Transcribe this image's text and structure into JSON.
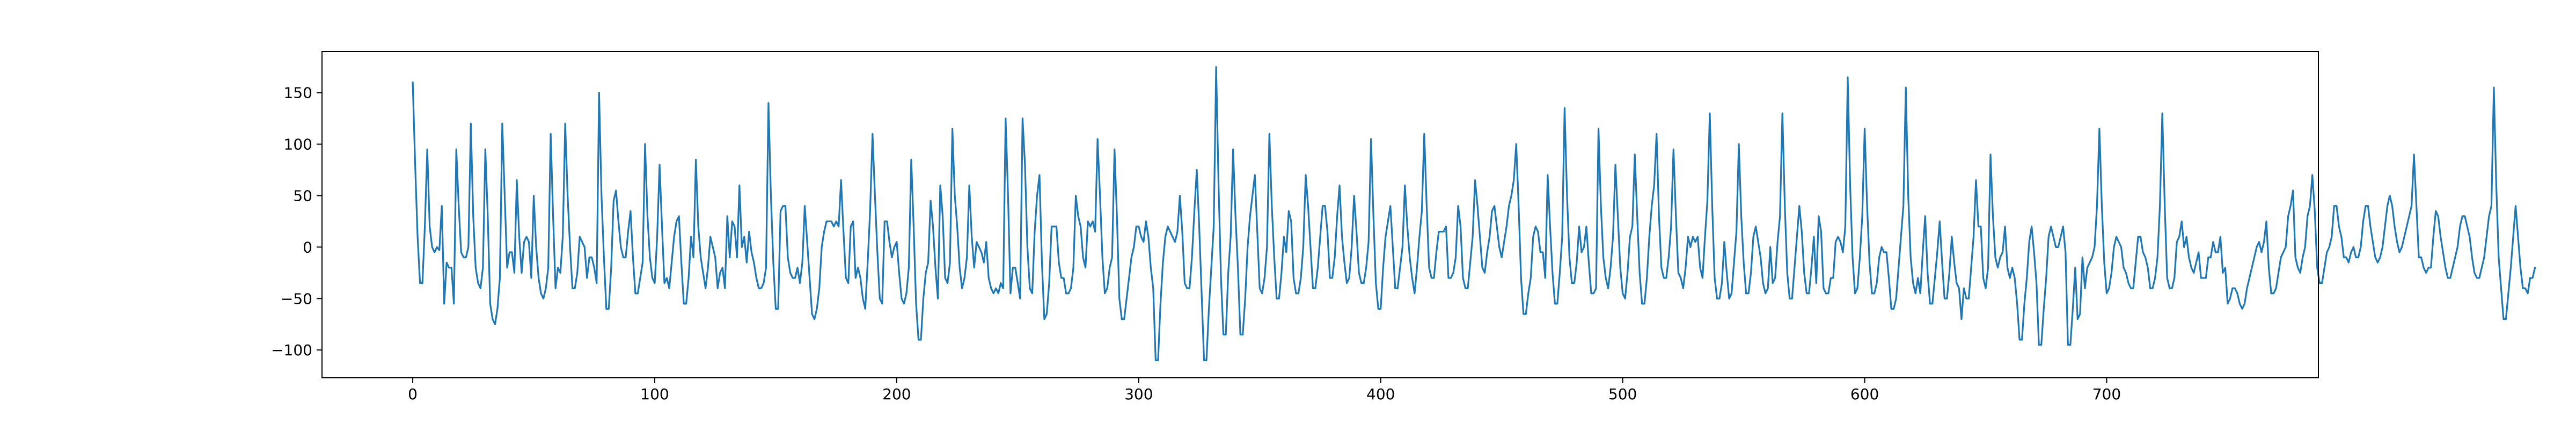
{
  "chart_data": {
    "type": "line",
    "title": "",
    "xlabel": "",
    "ylabel": "",
    "xlim": [
      -37.5,
      787.5
    ],
    "ylim": [
      -127,
      190
    ],
    "x_ticks": [
      0,
      100,
      200,
      300,
      400,
      500,
      600,
      700
    ],
    "x_tick_labels": [
      "0",
      "100",
      "200",
      "300",
      "400",
      "500",
      "600",
      "700"
    ],
    "y_ticks": [
      -100,
      -50,
      0,
      50,
      100,
      150
    ],
    "y_tick_labels": [
      "−100",
      "−50",
      "0",
      "50",
      "100",
      "150"
    ],
    "grid": false,
    "legend": "none",
    "line_color": "#1f77b4",
    "series": [
      {
        "x_start": 0,
        "x_step": 1,
        "values": [
          160,
          80,
          10,
          -35,
          -35,
          20,
          95,
          20,
          0,
          -5,
          0,
          -3,
          40,
          -55,
          -15,
          -20,
          -20,
          -55,
          95,
          40,
          -5,
          -10,
          -10,
          0,
          120,
          30,
          -20,
          -35,
          -40,
          -20,
          95,
          30,
          -55,
          -70,
          -75,
          -60,
          -30,
          120,
          50,
          -20,
          -5,
          -5,
          -25,
          65,
          10,
          -25,
          5,
          10,
          5,
          -30,
          50,
          0,
          -30,
          -45,
          -50,
          -40,
          -20,
          110,
          30,
          -40,
          -20,
          -25,
          10,
          120,
          50,
          0,
          -40,
          -40,
          -25,
          10,
          5,
          0,
          -30,
          -10,
          -10,
          -20,
          -35,
          150,
          50,
          -10,
          -60,
          -60,
          -20,
          45,
          55,
          25,
          0,
          -10,
          -10,
          15,
          35,
          -10,
          -45,
          -45,
          -30,
          -15,
          100,
          30,
          -10,
          -30,
          -35,
          10,
          80,
          20,
          -35,
          -30,
          -40,
          -15,
          10,
          25,
          30,
          -15,
          -55,
          -55,
          -30,
          10,
          -10,
          85,
          20,
          -10,
          -25,
          -40,
          -20,
          10,
          0,
          -10,
          -40,
          -25,
          -20,
          -40,
          30,
          -10,
          25,
          20,
          -10,
          60,
          0,
          10,
          -15,
          15,
          -5,
          -15,
          -30,
          -40,
          -40,
          -35,
          -20,
          140,
          50,
          -15,
          -60,
          -60,
          35,
          40,
          40,
          -10,
          -25,
          -30,
          -30,
          -20,
          -35,
          -15,
          40,
          5,
          -30,
          -65,
          -70,
          -60,
          -40,
          0,
          15,
          25,
          25,
          25,
          20,
          25,
          20,
          65,
          15,
          -30,
          -35,
          20,
          25,
          -30,
          -20,
          -30,
          -50,
          -60,
          -15,
          35,
          110,
          50,
          -5,
          -50,
          -55,
          25,
          25,
          5,
          -10,
          0,
          5,
          -25,
          -50,
          -55,
          -45,
          -20,
          85,
          20,
          -55,
          -90,
          -90,
          -50,
          -25,
          -15,
          45,
          20,
          -20,
          -50,
          60,
          30,
          -30,
          -35,
          -15,
          115,
          50,
          20,
          -20,
          -40,
          -30,
          -10,
          60,
          10,
          -20,
          5,
          0,
          -5,
          -15,
          5,
          -30,
          -40,
          -45,
          -40,
          -45,
          -35,
          -40,
          125,
          50,
          -45,
          -20,
          -20,
          -35,
          -50,
          125,
          80,
          0,
          -40,
          -45,
          15,
          50,
          70,
          -15,
          -70,
          -65,
          -35,
          20,
          20,
          20,
          -15,
          -30,
          -30,
          -45,
          -45,
          -40,
          -20,
          50,
          30,
          20,
          -10,
          -20,
          25,
          20,
          25,
          15,
          105,
          50,
          -10,
          -45,
          -40,
          -20,
          -10,
          95,
          30,
          -50,
          -70,
          -70,
          -50,
          -30,
          -10,
          0,
          20,
          20,
          10,
          5,
          25,
          10,
          -20,
          -40,
          -110,
          -110,
          -55,
          -15,
          10,
          20,
          15,
          10,
          5,
          15,
          50,
          15,
          -35,
          -40,
          -40,
          -10,
          35,
          75,
          20,
          -45,
          -110,
          -110,
          -60,
          -20,
          20,
          175,
          60,
          -30,
          -85,
          -85,
          -25,
          10,
          95,
          30,
          -20,
          -85,
          -85,
          -50,
          0,
          30,
          50,
          70,
          15,
          -40,
          -45,
          -30,
          0,
          110,
          40,
          -10,
          -50,
          -50,
          -25,
          10,
          -5,
          35,
          25,
          -30,
          -45,
          -45,
          -30,
          0,
          70,
          40,
          0,
          -40,
          -40,
          -20,
          10,
          40,
          40,
          15,
          -30,
          -30,
          -10,
          30,
          60,
          10,
          -15,
          -35,
          -30,
          0,
          50,
          15,
          -25,
          -35,
          -35,
          -20,
          5,
          105,
          30,
          -35,
          -60,
          -60,
          -20,
          10,
          25,
          40,
          0,
          -40,
          -40,
          -20,
          0,
          60,
          20,
          -10,
          -30,
          -45,
          -20,
          10,
          35,
          110,
          40,
          -20,
          -30,
          -30,
          -5,
          15,
          15,
          15,
          20,
          -30,
          -30,
          -25,
          -10,
          40,
          20,
          -30,
          -40,
          -40,
          -15,
          10,
          65,
          40,
          10,
          -20,
          -25,
          -5,
          10,
          35,
          40,
          20,
          0,
          -10,
          5,
          20,
          40,
          50,
          65,
          100,
          40,
          -30,
          -65,
          -65,
          -45,
          -30,
          10,
          20,
          15,
          -5,
          -5,
          -30,
          70,
          20,
          -25,
          -55,
          -55,
          -25,
          10,
          135,
          50,
          -10,
          -35,
          -35,
          -15,
          20,
          -5,
          0,
          20,
          -15,
          -45,
          -45,
          -40,
          115,
          40,
          -10,
          -30,
          -40,
          -20,
          10,
          80,
          30,
          -20,
          -45,
          -50,
          -25,
          10,
          20,
          90,
          30,
          -25,
          -55,
          -55,
          -30,
          10,
          40,
          60,
          110,
          30,
          -20,
          -30,
          -30,
          -10,
          20,
          95,
          30,
          -25,
          -30,
          -40,
          -20,
          10,
          0,
          10,
          5,
          10,
          -20,
          -30,
          10,
          45,
          130,
          40,
          -30,
          -50,
          -50,
          -35,
          5,
          -25,
          -50,
          -45,
          -15,
          15,
          100,
          30,
          -15,
          -45,
          -45,
          -25,
          10,
          20,
          5,
          -10,
          -35,
          -45,
          -40,
          0,
          -35,
          -30,
          5,
          30,
          130,
          40,
          -25,
          -50,
          -50,
          -20,
          10,
          40,
          15,
          -25,
          -45,
          -45,
          -20,
          10,
          -35,
          30,
          15,
          -40,
          -45,
          -45,
          -30,
          -30,
          5,
          10,
          5,
          -5,
          20,
          165,
          60,
          -10,
          -45,
          -40,
          -10,
          30,
          115,
          40,
          -15,
          -45,
          -45,
          -35,
          -10,
          0,
          -5,
          -5,
          -30,
          -60,
          -60,
          -50,
          -20,
          10,
          40,
          155,
          50,
          -10,
          -35,
          -45,
          -30,
          -45,
          -5,
          30,
          -25,
          -55,
          -55,
          -30,
          -5,
          25,
          -15,
          -50,
          -50,
          -25,
          10,
          -15,
          -35,
          -40,
          -70,
          -40,
          -50,
          -50,
          -20,
          10,
          65,
          20,
          20,
          -30,
          -40,
          -20,
          90,
          30,
          -10,
          -20,
          -10,
          -5,
          20,
          -20,
          -30,
          -20,
          -30,
          -55,
          -90,
          -90,
          -55,
          -30,
          5,
          20,
          -5,
          -35,
          -95,
          -95,
          -60,
          -30,
          10,
          20,
          10,
          0,
          0,
          10,
          20,
          -5,
          -95,
          -95,
          -60,
          -20,
          -70,
          -65,
          -10,
          -40,
          -20,
          -15,
          -10,
          0,
          40,
          115,
          40,
          -15,
          -45,
          -40,
          -25,
          0,
          10,
          5,
          0,
          -20,
          -25,
          -35,
          -40,
          -40,
          -15,
          10,
          10,
          -5,
          -10,
          -20,
          -40,
          -40,
          -30,
          -10,
          40,
          130,
          40,
          -30,
          -40,
          -40,
          -30,
          5,
          10,
          25,
          0,
          10,
          -10,
          -20,
          -25,
          -15,
          -5,
          -30,
          -30,
          -30,
          -10,
          -10,
          5,
          -5,
          -5,
          10,
          -25,
          -20,
          -55,
          -50,
          -40,
          -40,
          -45,
          -55,
          -60,
          -55,
          -40,
          -30,
          -20,
          -10,
          0,
          5,
          -5,
          5,
          25,
          -20,
          -45,
          -45,
          -40,
          -25,
          -10,
          -5,
          0,
          30,
          40,
          55,
          -10,
          -20,
          -25,
          -10,
          0,
          30,
          40,
          70,
          35,
          -20,
          -35,
          -35,
          -20,
          -5,
          0,
          10,
          40,
          40,
          20,
          10,
          -10,
          -10,
          -15,
          -5,
          0,
          -10,
          -10,
          0,
          25,
          40,
          40,
          20,
          5,
          -10,
          -15,
          -10,
          0,
          20,
          40,
          50,
          40,
          20,
          5,
          -5,
          0,
          10,
          20,
          30,
          40,
          90,
          40,
          -10,
          -10,
          -20,
          -25,
          -20,
          -20,
          10,
          35,
          30,
          10,
          -5,
          -20,
          -30,
          -30,
          -20,
          -10,
          0,
          20,
          30,
          30,
          20,
          10,
          -10,
          -25,
          -30,
          -30,
          -20,
          -10,
          10,
          30,
          40,
          155,
          60,
          -10,
          -40,
          -70,
          -70,
          -45,
          -20,
          10,
          40,
          10,
          -20,
          -40,
          -40,
          -45,
          -30,
          -30,
          -20
        ]
      }
    ]
  }
}
